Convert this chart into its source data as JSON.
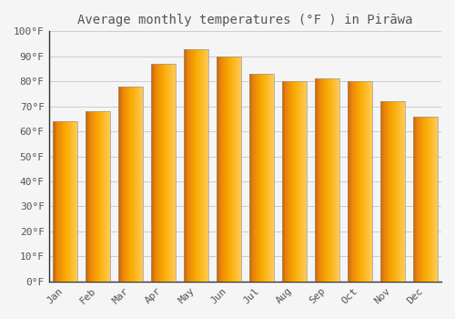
{
  "title": "Average monthly temperatures (°F ) in Pirāwa",
  "months": [
    "Jan",
    "Feb",
    "Mar",
    "Apr",
    "May",
    "Jun",
    "Jul",
    "Aug",
    "Sep",
    "Oct",
    "Nov",
    "Dec"
  ],
  "values": [
    64,
    68,
    78,
    87,
    93,
    90,
    83,
    80,
    81,
    80,
    72,
    66
  ],
  "bar_color_left": "#E8820C",
  "bar_color_mid": "#F5A800",
  "bar_color_right": "#FFCC44",
  "bar_edge_color": "#999999",
  "background_color": "#F5F5F5",
  "plot_bg_color": "#F5F5F5",
  "grid_color": "#CCCCCC",
  "ylim": [
    0,
    100
  ],
  "yticks": [
    0,
    10,
    20,
    30,
    40,
    50,
    60,
    70,
    80,
    90,
    100
  ],
  "ytick_labels": [
    "0°F",
    "10°F",
    "20°F",
    "30°F",
    "40°F",
    "50°F",
    "60°F",
    "70°F",
    "80°F",
    "90°F",
    "100°F"
  ],
  "title_fontsize": 10,
  "tick_fontsize": 8,
  "font_color": "#555555",
  "bar_width": 0.75,
  "spine_color": "#333333"
}
